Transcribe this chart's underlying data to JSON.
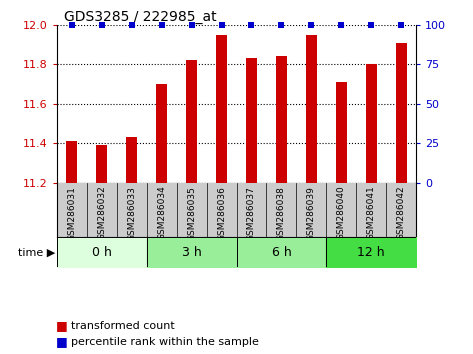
{
  "title": "GDS3285 / 222985_at",
  "samples": [
    "GSM286031",
    "GSM286032",
    "GSM286033",
    "GSM286034",
    "GSM286035",
    "GSM286036",
    "GSM286037",
    "GSM286038",
    "GSM286039",
    "GSM286040",
    "GSM286041",
    "GSM286042"
  ],
  "bar_values": [
    11.41,
    11.39,
    11.43,
    11.7,
    11.82,
    11.95,
    11.83,
    11.84,
    11.95,
    11.71,
    11.8,
    11.91
  ],
  "percentile_values": [
    100,
    100,
    100,
    100,
    100,
    100,
    100,
    100,
    100,
    100,
    100,
    100
  ],
  "bar_color": "#cc0000",
  "percentile_color": "#0000cc",
  "ylim_left": [
    11.2,
    12.0
  ],
  "ylim_right": [
    0,
    100
  ],
  "yticks_left": [
    11.2,
    11.4,
    11.6,
    11.8,
    12.0
  ],
  "yticks_right": [
    0,
    25,
    50,
    75,
    100
  ],
  "time_groups": [
    {
      "label": "0 h",
      "start": 0,
      "end": 3,
      "color": "#ddffdd"
    },
    {
      "label": "3 h",
      "start": 3,
      "end": 6,
      "color": "#99ee99"
    },
    {
      "label": "6 h",
      "start": 6,
      "end": 9,
      "color": "#99ee99"
    },
    {
      "label": "12 h",
      "start": 9,
      "end": 12,
      "color": "#44dd44"
    }
  ],
  "sample_bg_color": "#cccccc",
  "bar_width": 0.35,
  "base_value": 11.2,
  "xlim": [
    -0.5,
    11.5
  ]
}
